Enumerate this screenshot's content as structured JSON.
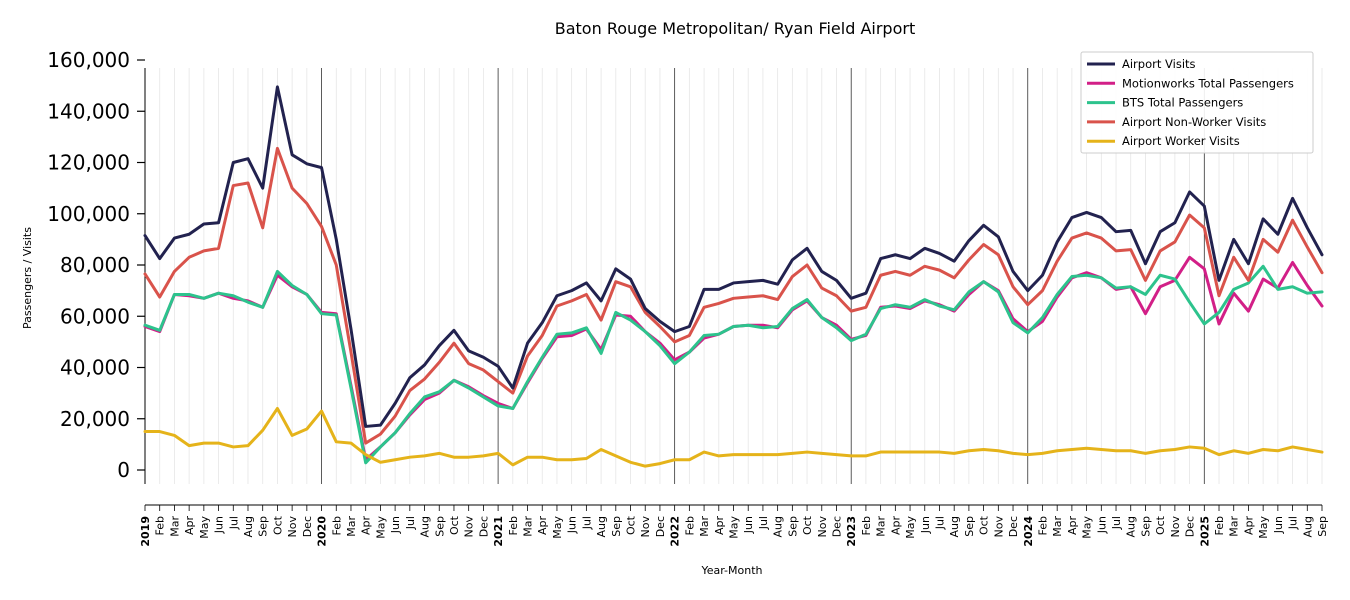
{
  "chart_data": {
    "type": "line",
    "title": "Baton Rouge Metropolitan/ Ryan Field Airport",
    "xlabel": "Year-Month",
    "ylabel": "Passengers / Visits",
    "ylim": [
      -6000,
      160000
    ],
    "yticks": [
      0,
      20000,
      40000,
      60000,
      80000,
      100000,
      120000,
      140000,
      160000
    ],
    "ytick_labels": [
      "0",
      "20,000",
      "40,000",
      "60,000",
      "80,000",
      "100,000",
      "120,000",
      "140,000",
      "160,000"
    ],
    "grid": "vertical monthly gridlines; darker lines at each January",
    "legend_position": "top-right",
    "x": [
      "2019",
      "Feb",
      "Mar",
      "Apr",
      "May",
      "Jun",
      "Jul",
      "Aug",
      "Sep",
      "Oct",
      "Nov",
      "Dec",
      "2020",
      "Feb",
      "Mar",
      "Apr",
      "May",
      "Jun",
      "Jul",
      "Aug",
      "Sep",
      "Oct",
      "Nov",
      "Dec",
      "2021",
      "Feb",
      "Mar",
      "Apr",
      "May",
      "Jun",
      "Jul",
      "Aug",
      "Sep",
      "Oct",
      "Nov",
      "Dec",
      "2022",
      "Feb",
      "Mar",
      "Apr",
      "May",
      "Jun",
      "Jul",
      "Aug",
      "Sep",
      "Oct",
      "Nov",
      "Dec",
      "2023",
      "Feb",
      "Mar",
      "Apr",
      "May",
      "Jun",
      "Jul",
      "Aug",
      "Sep",
      "Oct",
      "Nov",
      "Dec",
      "2024",
      "Feb",
      "Mar",
      "Apr",
      "May",
      "Jun",
      "Jul",
      "Aug",
      "Sep",
      "Oct",
      "Nov",
      "Dec",
      "2025",
      "Feb",
      "Mar",
      "Apr",
      "May",
      "Jun",
      "Jul",
      "Aug",
      "Sep"
    ],
    "series": [
      {
        "name": "Airport Visits",
        "color": "#22224f",
        "values": [
          91500,
          82500,
          90500,
          92000,
          96000,
          96500,
          120000,
          121500,
          110000,
          149500,
          123000,
          119500,
          118000,
          90000,
          55000,
          17000,
          17500,
          26000,
          36000,
          41000,
          48500,
          54500,
          46500,
          44000,
          40500,
          32000,
          49500,
          57500,
          68000,
          70000,
          73000,
          66000,
          78500,
          74500,
          63000,
          58000,
          54000,
          56000,
          70500,
          70500,
          73000,
          73500,
          74000,
          72500,
          82000,
          86500,
          77500,
          74000,
          67000,
          69000,
          82500,
          84000,
          82500,
          86500,
          84500,
          81500,
          89500,
          95500,
          91000,
          77500,
          70000,
          76000,
          89000,
          98500,
          100500,
          98500,
          93000,
          93500,
          80500,
          93000,
          96500,
          108500,
          103000,
          74000,
          90000,
          80500,
          98000,
          92000,
          106000,
          94500,
          84000
        ]
      },
      {
        "name": "Motionworks Total Passengers",
        "color": "#d21f87",
        "values": [
          56000,
          54000,
          68500,
          68000,
          67000,
          69000,
          67000,
          66000,
          63500,
          76000,
          71500,
          68500,
          61500,
          61000,
          33000,
          4000,
          9000,
          14500,
          21500,
          27500,
          30000,
          35000,
          32500,
          29000,
          26000,
          24000,
          34000,
          43500,
          52000,
          52500,
          55000,
          47000,
          60500,
          60000,
          54000,
          49500,
          43000,
          46000,
          51500,
          53000,
          56000,
          56500,
          56500,
          55500,
          62500,
          66000,
          59500,
          56500,
          51000,
          52500,
          63500,
          64000,
          63000,
          66000,
          64500,
          62000,
          68500,
          73500,
          70000,
          59000,
          54000,
          58000,
          67500,
          75000,
          77000,
          75000,
          70500,
          71500,
          61000,
          71500,
          74000,
          83000,
          78500,
          57000,
          69000,
          62000,
          74500,
          71000,
          81000,
          72000,
          64000
        ]
      },
      {
        "name": "BTS Total Passengers",
        "color": "#2dc38d",
        "values": [
          56500,
          54500,
          68500,
          68500,
          67000,
          69000,
          68000,
          65500,
          63500,
          77500,
          72000,
          68500,
          61000,
          60500,
          32000,
          2800,
          9000,
          14500,
          22000,
          28500,
          30500,
          35000,
          32000,
          28500,
          25000,
          24000,
          34500,
          44000,
          53000,
          53500,
          55500,
          45500,
          61500,
          58500,
          54000,
          48500,
          41500,
          46000,
          52500,
          53000,
          56000,
          56500,
          55500,
          56000,
          63000,
          66500,
          59500,
          55500,
          50500,
          53000,
          63000,
          64500,
          63500,
          66500,
          64000,
          62500,
          69500,
          73500,
          69500,
          57500,
          53500,
          59500,
          68500,
          75500,
          76000,
          75000,
          71000,
          71500,
          68500,
          76000,
          74500,
          65500,
          57000,
          61500,
          70500,
          73000,
          79500,
          70500,
          71500,
          69000,
          69500
        ]
      },
      {
        "name": "Airport Non-Worker Visits",
        "color": "#d9534b",
        "values": [
          76500,
          67500,
          77500,
          83000,
          85500,
          86500,
          111000,
          112000,
          94500,
          125500,
          110000,
          104000,
          95000,
          80000,
          46000,
          10500,
          14000,
          21000,
          31000,
          35500,
          42000,
          49500,
          41500,
          39000,
          34500,
          30000,
          44500,
          52500,
          64000,
          66000,
          68500,
          58500,
          73500,
          71500,
          61500,
          56000,
          50000,
          52500,
          63500,
          65000,
          67000,
          67500,
          68000,
          66500,
          75500,
          80000,
          71000,
          68000,
          62000,
          63500,
          76000,
          77500,
          76000,
          79500,
          78000,
          75000,
          82000,
          88000,
          84000,
          71500,
          64500,
          70000,
          81500,
          90500,
          92500,
          90500,
          85500,
          86000,
          74000,
          85500,
          89000,
          99500,
          94500,
          68000,
          83000,
          74000,
          90000,
          85000,
          97500,
          87000,
          77000
        ]
      },
      {
        "name": "Airport Worker Visits",
        "color": "#e5b31a",
        "values": [
          15000,
          15000,
          13500,
          9500,
          10500,
          10500,
          9000,
          9500,
          15500,
          24000,
          13500,
          16000,
          23000,
          11000,
          10500,
          6000,
          3000,
          4000,
          5000,
          5500,
          6500,
          5000,
          5000,
          5500,
          6500,
          2000,
          5000,
          5000,
          4000,
          4000,
          4500,
          8000,
          5500,
          3000,
          1500,
          2500,
          4000,
          4000,
          7000,
          5500,
          6000,
          6000,
          6000,
          6000,
          6500,
          7000,
          6500,
          6000,
          5500,
          5500,
          7000,
          7000,
          7000,
          7000,
          7000,
          6500,
          7500,
          8000,
          7500,
          6500,
          6000,
          6500,
          7500,
          8000,
          8500,
          8000,
          7500,
          7500,
          6500,
          7500,
          8000,
          9000,
          8500,
          6000,
          7500,
          6500,
          8000,
          7500,
          9000,
          8000,
          7000
        ]
      }
    ]
  }
}
